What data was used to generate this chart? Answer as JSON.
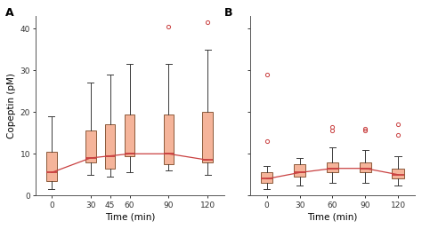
{
  "panel_A": {
    "timepoints": [
      0,
      30,
      45,
      60,
      90,
      120
    ],
    "boxes": [
      {
        "q1": 3.5,
        "median": 5.5,
        "q3": 10.5,
        "whislo": 1.5,
        "whishi": 19.0,
        "fliers": []
      },
      {
        "q1": 8.0,
        "median": 9.0,
        "q3": 15.5,
        "whislo": 5.0,
        "whishi": 27.0,
        "fliers": []
      },
      {
        "q1": 6.5,
        "median": 9.5,
        "q3": 17.0,
        "whislo": 4.5,
        "whishi": 29.0,
        "fliers": []
      },
      {
        "q1": 9.5,
        "median": 10.0,
        "q3": 19.5,
        "whislo": 5.5,
        "whishi": 31.5,
        "fliers": []
      },
      {
        "q1": 7.5,
        "median": 10.0,
        "q3": 19.5,
        "whislo": 6.0,
        "whishi": 31.5,
        "fliers": [
          40.5
        ]
      },
      {
        "q1": 8.0,
        "median": 8.5,
        "q3": 20.0,
        "whislo": 5.0,
        "whishi": 35.0,
        "fliers": [
          41.5
        ]
      }
    ],
    "median_line": [
      5.5,
      9.0,
      9.5,
      10.0,
      10.0,
      8.5
    ],
    "ylim": [
      0,
      43
    ],
    "yticks": [
      0,
      10,
      20,
      30,
      40
    ],
    "ylabel": "Copeptin (pM)",
    "xlabel": "Time (min)",
    "label": "A",
    "xlim": [
      -12,
      133
    ]
  },
  "panel_B": {
    "timepoints": [
      0,
      30,
      60,
      90,
      120
    ],
    "boxes": [
      {
        "q1": 3.0,
        "median": 4.0,
        "q3": 5.5,
        "whislo": 1.5,
        "whishi": 7.0,
        "fliers": [
          13.0,
          29.0
        ]
      },
      {
        "q1": 4.5,
        "median": 5.5,
        "q3": 7.5,
        "whislo": 2.5,
        "whishi": 9.0,
        "fliers": []
      },
      {
        "q1": 5.5,
        "median": 6.5,
        "q3": 8.0,
        "whislo": 3.0,
        "whishi": 11.5,
        "fliers": [
          15.5,
          16.5
        ]
      },
      {
        "q1": 5.5,
        "median": 6.5,
        "q3": 8.0,
        "whislo": 3.0,
        "whishi": 11.0,
        "fliers": [
          15.5,
          16.0
        ]
      },
      {
        "q1": 4.0,
        "median": 5.0,
        "q3": 6.5,
        "whislo": 2.5,
        "whishi": 9.5,
        "fliers": [
          14.5,
          17.0
        ]
      }
    ],
    "median_line": [
      4.0,
      5.5,
      6.5,
      6.5,
      5.0
    ],
    "ylim": [
      0,
      43
    ],
    "yticks": [
      0,
      10,
      20,
      30,
      40
    ],
    "xlabel": "Time (min)",
    "label": "B",
    "xlim": [
      -15,
      135
    ]
  },
  "box_facecolor": "#F5B49A",
  "box_edgecolor": "#8B5A3A",
  "median_color": "#C94040",
  "whisker_color": "#3A3A3A",
  "cap_color": "#3A3A3A",
  "flier_edgecolor": "#C94040",
  "trend_color": "#C94040",
  "background": "#FFFFFF",
  "spine_color": "#555555",
  "tick_color": "#333333"
}
